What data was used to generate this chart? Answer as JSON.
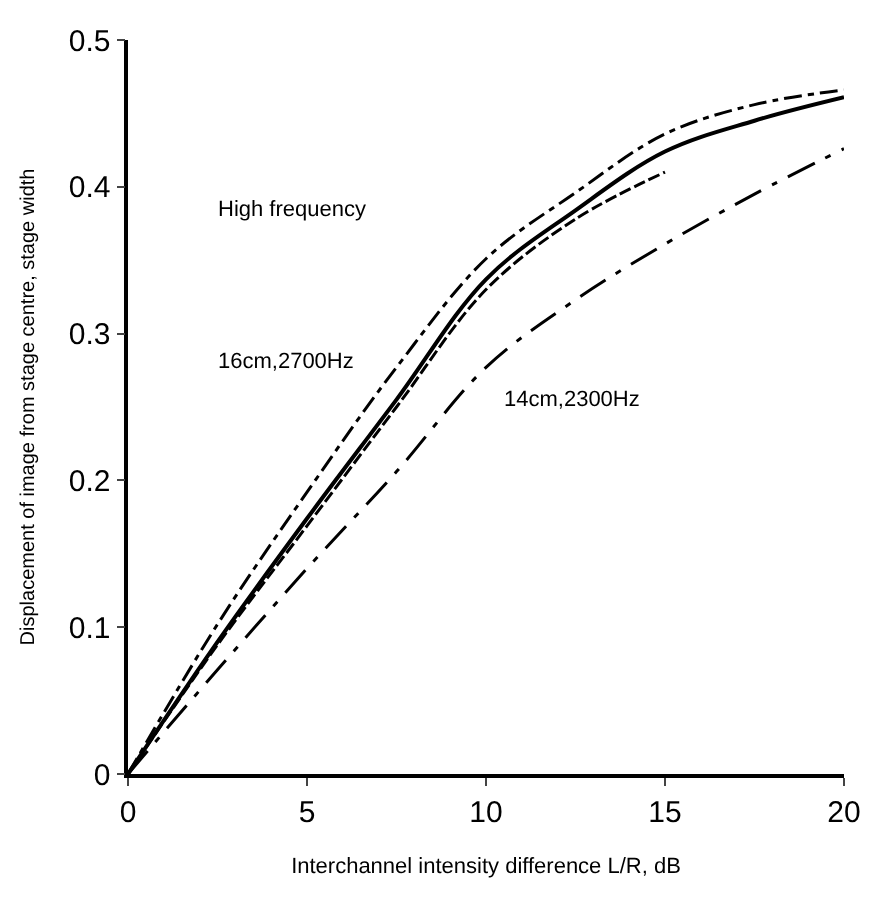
{
  "chart_data": {
    "type": "line",
    "xlabel": "Interchannel intensity difference L/R, dB",
    "ylabel": "Displacement of image from stage centre, stage width",
    "annotations": [
      "High frequency",
      "16cm,2700Hz",
      "14cm,2300Hz"
    ],
    "x": [
      0,
      2.5,
      5,
      7.5,
      10,
      12.5,
      15,
      17.5,
      20
    ],
    "series": [
      {
        "color": "#000000",
        "line_style": "solid",
        "values": [
          0,
          0.09,
          0.174,
          0.255,
          0.337,
          0.384,
          0.424,
          0.445,
          0.461
        ]
      },
      {
        "color": "#000000",
        "line_style": "dashdot",
        "values": [
          0,
          0.102,
          0.192,
          0.277,
          0.351,
          0.396,
          0.436,
          0.456,
          0.466
        ]
      },
      {
        "color": "#000000",
        "line_style": "dashed",
        "values": [
          0,
          0.088,
          0.169,
          0.25,
          0.33,
          0.378,
          0.41,
          null,
          null
        ]
      },
      {
        "color": "#000000",
        "line_style": "longdashdot",
        "values": [
          0,
          0.071,
          0.14,
          0.206,
          0.277,
          0.323,
          0.361,
          0.395,
          0.426
        ]
      }
    ],
    "xlim": [
      0,
      20
    ],
    "ylim": [
      0,
      0.5
    ],
    "xticks": [
      0,
      5,
      10,
      15,
      20
    ],
    "yticks": [
      0,
      0.1,
      0.2,
      0.3,
      0.4,
      0.5
    ],
    "marker": "none"
  }
}
